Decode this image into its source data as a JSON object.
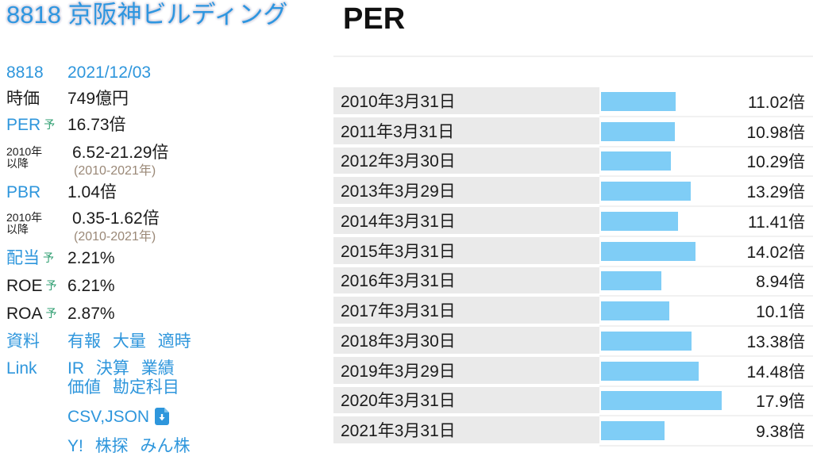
{
  "page": {
    "title": "8818 京阪神ビルディング"
  },
  "main": {
    "section_title": "PER"
  },
  "sidebar": {
    "stock_code": "8818",
    "quote_date": "2021/12/03",
    "market_cap": {
      "label": "時価",
      "value": "749億円"
    },
    "per": {
      "label": "PER",
      "badge": "予",
      "value": "16.73倍"
    },
    "per_range": {
      "label_line1": "2010年",
      "label_line2": "以降",
      "value": "6.52-21.29倍",
      "note": "(2010-2021年)"
    },
    "pbr": {
      "label": "PBR",
      "value": "1.04倍"
    },
    "pbr_range": {
      "label_line1": "2010年",
      "label_line2": "以降",
      "value": "0.35-1.62倍",
      "note": "(2010-2021年)"
    },
    "dividend": {
      "label": "配当",
      "badge": "予",
      "value": "2.21%"
    },
    "roe": {
      "label": "ROE",
      "badge": "予",
      "value": "6.21%"
    },
    "roa": {
      "label": "ROA",
      "badge": "予",
      "value": "2.87%"
    },
    "docs": {
      "label": "資料",
      "links": [
        "有報",
        "大量",
        "適時"
      ]
    },
    "links": {
      "label": "Link",
      "row1": [
        "IR",
        "決算",
        "業績"
      ],
      "row2": [
        "価値",
        "勘定科目"
      ]
    },
    "export": {
      "label": "CSV,JSON",
      "icon": "download-icon"
    },
    "external": {
      "links": [
        "Y!",
        "株探",
        "みん株"
      ]
    }
  },
  "colors": {
    "link_blue": "#2e96dc",
    "title_blue": "#2e96e0",
    "badge_green": "#2e9e70",
    "note_brown": "#9a8877",
    "bar_blue": "#7fcdf6",
    "cell_gray": "#eaeaea",
    "divider_gray": "#f0f0f0",
    "text_black": "#1b1b1b"
  },
  "chart_data": {
    "type": "bar",
    "orientation": "horizontal",
    "title": "PER",
    "unit": "倍",
    "legend": false,
    "grid": false,
    "categories": [
      "2010年3月31日",
      "2011年3月31日",
      "2012年3月30日",
      "2013年3月29日",
      "2014年3月31日",
      "2015年3月31日",
      "2016年3月31日",
      "2017年3月31日",
      "2018年3月30日",
      "2019年3月29日",
      "2020年3月31日",
      "2021年3月31日"
    ],
    "values": [
      11.02,
      10.98,
      10.29,
      13.29,
      11.41,
      14.02,
      8.94,
      10.1,
      13.38,
      14.48,
      17.9,
      9.38
    ],
    "value_labels": [
      "11.02倍",
      "10.98倍",
      "10.29倍",
      "13.29倍",
      "11.41倍",
      "14.02倍",
      "8.94倍",
      "10.1倍",
      "13.38倍",
      "14.48倍",
      "17.9倍",
      "9.38倍"
    ],
    "bar_color": "#7fcdf6"
  }
}
